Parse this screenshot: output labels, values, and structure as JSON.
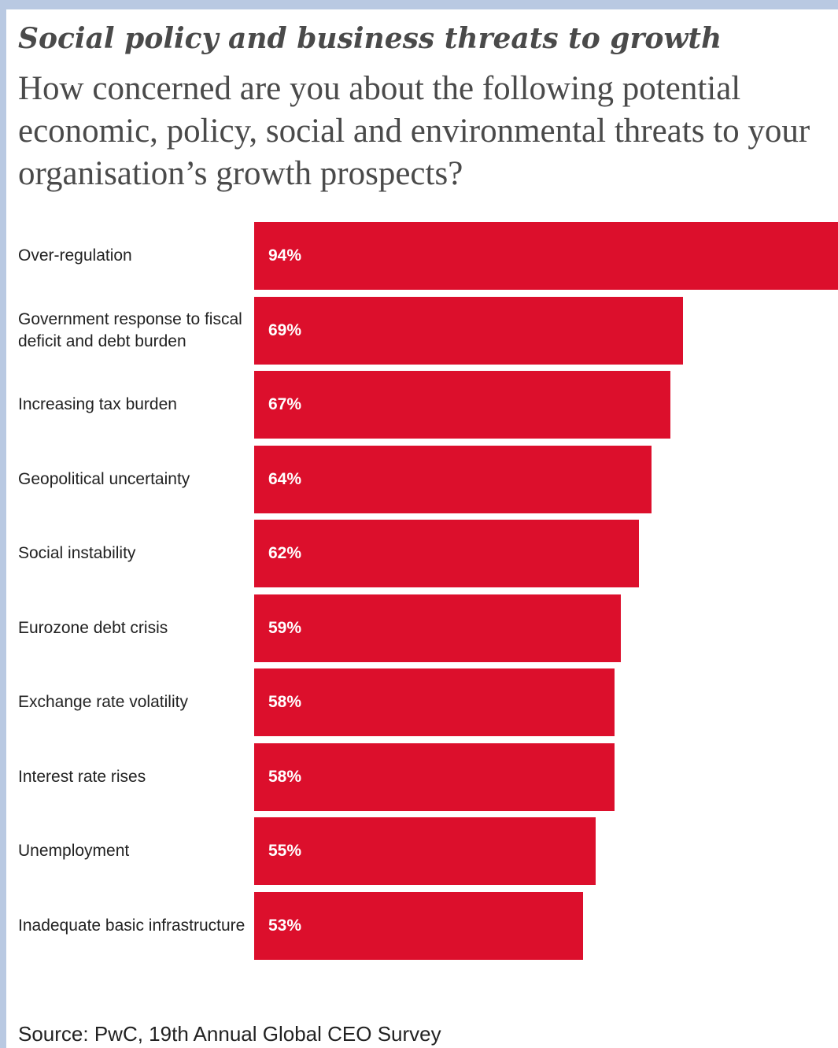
{
  "chart_data": {
    "type": "bar",
    "orientation": "horizontal",
    "title": "Social policy and business threats to growth",
    "subtitle": "How concerned are you about the following potential economic, policy, social and environmental threats to your organisation’s growth prospects?",
    "categories": [
      "Over-regulation",
      "Government response to fiscal deficit and debt burden",
      "Increasing tax burden",
      "Geopolitical uncertainty",
      "Social instability",
      "Eurozone debt crisis",
      "Exchange rate volatility",
      "Interest rate rises",
      "Unemployment",
      "Inadequate basic infrastructure"
    ],
    "values": [
      94,
      69,
      67,
      64,
      62,
      59,
      58,
      58,
      55,
      53
    ],
    "value_labels": [
      "94%",
      "69%",
      "67%",
      "64%",
      "62%",
      "59%",
      "58%",
      "58%",
      "55%",
      "53%"
    ],
    "unit": "%",
    "xlim": [
      0,
      94
    ],
    "bar_color": "#dc0f2c",
    "grid": false,
    "legend": "none",
    "source": "Source: PwC, 19th Annual Global CEO Survey"
  }
}
